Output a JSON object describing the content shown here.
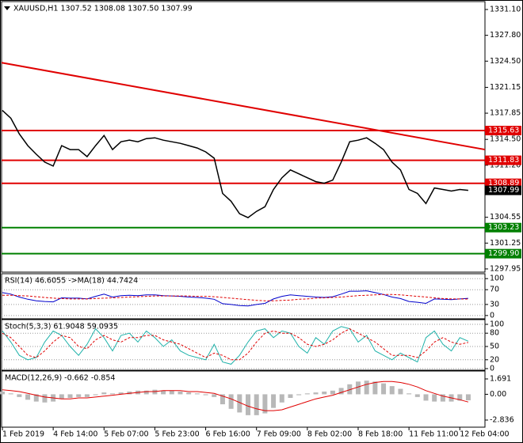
{
  "chart_data": [
    {
      "type": "line",
      "title": "XAUUSD,H1  1307.52 1308.08 1307.50 1307.99",
      "ylim": [
        1297.54,
        1332.11
      ],
      "yticks": [
        {
          "value": 1331.1,
          "label": "1331.10"
        },
        {
          "value": 1327.8,
          "label": "1327.80"
        },
        {
          "value": 1324.5,
          "label": "1324.50"
        },
        1321.15,
        1317.85,
        {
          "value": 1314.5,
          "label": "1314.50"
        },
        {
          "value": 1311.2,
          "label": "1311.20"
        },
        1304.55,
        1301.25,
        1297.95
      ],
      "grid": false,
      "series": [
        {
          "type": "line",
          "color": "#000000",
          "values": [
            1318.2,
            1317.2,
            1315.2,
            1313.7,
            1312.6,
            1311.6,
            1311.1,
            1313.7,
            1313.2,
            1313.2,
            1312.3,
            1313.7,
            1315.0,
            1313.2,
            1314.2,
            1314.4,
            1314.2,
            1314.6,
            1314.7,
            1314.4,
            1314.2,
            1314.0,
            1313.7,
            1313.4,
            1312.9,
            1312.1,
            1307.6,
            1306.6,
            1305.0,
            1304.5,
            1305.3,
            1305.9,
            1308.1,
            1309.6,
            1310.6,
            1310.1,
            1309.6,
            1309.1,
            1308.9,
            1309.3,
            1311.6,
            1314.2,
            1314.4,
            1314.7,
            1314.0,
            1313.2,
            1311.6,
            1310.6,
            1308.1,
            1307.6,
            1306.3,
            1308.3,
            1308.1,
            1307.9,
            1308.1,
            1307.99
          ]
        }
      ],
      "trend_line": {
        "color": "#e00000",
        "values": [
          1324.3,
          1313.2
        ]
      },
      "levels": [
        {
          "value": 1315.63,
          "color": "#e00000"
        },
        {
          "value": 1311.83,
          "color": "#e00000"
        },
        {
          "value": 1308.89,
          "color": "#e00000"
        },
        {
          "value": 1303.23,
          "color": "#008000"
        },
        {
          "value": 1299.9,
          "label": "1299.90",
          "color": "#008000"
        }
      ],
      "last_price": {
        "value": 1307.99,
        "color": "#000000"
      }
    },
    {
      "type": "line",
      "title": "RSI(14) 46.6055 ->MA(18) 44.7424",
      "ylim": [
        -8.9,
        113.3
      ],
      "yticks": [
        100,
        70,
        30,
        0
      ],
      "grid": true,
      "series": [
        {
          "type": "line",
          "color": "#0000cc",
          "values": [
            62,
            58,
            50,
            44,
            40,
            38,
            37,
            48,
            47,
            47,
            45,
            52,
            58,
            50,
            54,
            55,
            54,
            56,
            56,
            54,
            53,
            52,
            50,
            49,
            47,
            44,
            32,
            30,
            27,
            26,
            30,
            33,
            45,
            52,
            56,
            54,
            52,
            50,
            49,
            51,
            58,
            66,
            66,
            67,
            62,
            57,
            50,
            46,
            38,
            36,
            33,
            45,
            44,
            43,
            45,
            46.6055
          ]
        },
        {
          "type": "line",
          "color": "#e00000",
          "dash": true,
          "values": [
            55,
            55,
            54,
            53,
            51,
            49,
            47,
            46,
            45,
            45,
            45,
            46,
            47,
            48,
            49,
            50,
            51,
            52,
            53,
            53,
            53,
            53,
            53,
            52,
            52,
            51,
            49,
            47,
            45,
            43,
            41,
            40,
            40,
            41,
            42,
            44,
            45,
            47,
            48,
            49,
            50,
            52,
            54,
            55,
            56,
            57,
            57,
            56,
            54,
            52,
            50,
            48,
            46,
            45,
            45,
            44.7424
          ]
        }
      ]
    },
    {
      "type": "line",
      "title": "Stoch(5,3,3) 61.9048 59.0935",
      "ylim": [
        -3.6,
        110.7
      ],
      "yticks": [
        100,
        80,
        50,
        20,
        0
      ],
      "grid": true,
      "series": [
        {
          "type": "line",
          "color": "#20b2aa",
          "values": [
            85,
            60,
            30,
            20,
            25,
            60,
            85,
            75,
            50,
            30,
            55,
            90,
            70,
            40,
            75,
            80,
            60,
            85,
            70,
            50,
            65,
            40,
            30,
            25,
            20,
            55,
            15,
            10,
            30,
            60,
            85,
            90,
            70,
            85,
            80,
            50,
            35,
            70,
            55,
            85,
            95,
            90,
            60,
            75,
            40,
            30,
            20,
            35,
            25,
            15,
            70,
            85,
            55,
            40,
            70,
            61.9048
          ]
        },
        {
          "type": "line",
          "color": "#e00000",
          "dash": true,
          "values": [
            80,
            70,
            50,
            30,
            25,
            40,
            60,
            75,
            70,
            50,
            45,
            65,
            75,
            65,
            60,
            70,
            70,
            75,
            75,
            65,
            60,
            55,
            45,
            35,
            25,
            35,
            30,
            20,
            20,
            35,
            60,
            80,
            85,
            80,
            80,
            70,
            55,
            50,
            55,
            65,
            80,
            90,
            80,
            70,
            60,
            45,
            30,
            30,
            30,
            25,
            40,
            60,
            70,
            60,
            55,
            59.0935
          ]
        }
      ]
    },
    {
      "type": "line",
      "title": "MACD(12,26,9) -0.662 -0.854",
      "ylim": [
        -3.619,
        2.561
      ],
      "yticks": [
        1.691,
        {
          "value": 0,
          "label": "0.00"
        },
        -2.836
      ],
      "grid": false,
      "categories": [
        "1 Feb 2019",
        null,
        null,
        null,
        null,
        null,
        "4 Feb 14:00",
        null,
        null,
        null,
        null,
        null,
        "5 Feb 07:00",
        null,
        null,
        null,
        null,
        null,
        "5 Feb 23:00",
        null,
        null,
        null,
        null,
        null,
        "6 Feb 16:00",
        null,
        null,
        null,
        null,
        null,
        "7 Feb 09:00",
        null,
        null,
        null,
        null,
        null,
        "8 Feb 02:00",
        null,
        null,
        null,
        null,
        null,
        "8 Feb 18:00",
        null,
        null,
        null,
        null,
        null,
        "11 Feb 11:00",
        null,
        null,
        null,
        null,
        null,
        "12 Feb 04:00",
        null
      ],
      "series": [
        {
          "type": "bar",
          "color": "#b8b8b8",
          "values": [
            0.3,
            0.1,
            -0.3,
            -0.6,
            -0.8,
            -0.9,
            -0.8,
            -0.5,
            -0.4,
            -0.3,
            -0.3,
            -0.1,
            0.2,
            0.1,
            0.2,
            0.3,
            0.4,
            0.4,
            0.5,
            0.4,
            0.4,
            0.3,
            0.2,
            0.1,
            -0.1,
            -0.3,
            -1.1,
            -1.6,
            -2.0,
            -2.3,
            -2.3,
            -2.1,
            -1.5,
            -0.9,
            -0.4,
            -0.1,
            0.1,
            0.2,
            0.3,
            0.4,
            0.7,
            1.1,
            1.4,
            1.5,
            1.4,
            1.2,
            0.9,
            0.6,
            0.1,
            -0.3,
            -0.7,
            -0.8,
            -0.8,
            -0.8,
            -0.7,
            -0.662
          ]
        },
        {
          "type": "line",
          "color": "#e00000",
          "values": [
            0.5,
            0.4,
            0.3,
            0.1,
            -0.1,
            -0.3,
            -0.4,
            -0.5,
            -0.5,
            -0.4,
            -0.4,
            -0.3,
            -0.2,
            -0.1,
            0.0,
            0.1,
            0.2,
            0.3,
            0.3,
            0.4,
            0.4,
            0.4,
            0.3,
            0.3,
            0.2,
            0.1,
            -0.2,
            -0.5,
            -0.9,
            -1.3,
            -1.6,
            -1.8,
            -1.8,
            -1.7,
            -1.4,
            -1.1,
            -0.8,
            -0.5,
            -0.3,
            -0.1,
            0.2,
            0.5,
            0.8,
            1.1,
            1.3,
            1.4,
            1.4,
            1.3,
            1.1,
            0.8,
            0.4,
            0.1,
            -0.2,
            -0.4,
            -0.6,
            -0.854
          ]
        }
      ]
    }
  ]
}
